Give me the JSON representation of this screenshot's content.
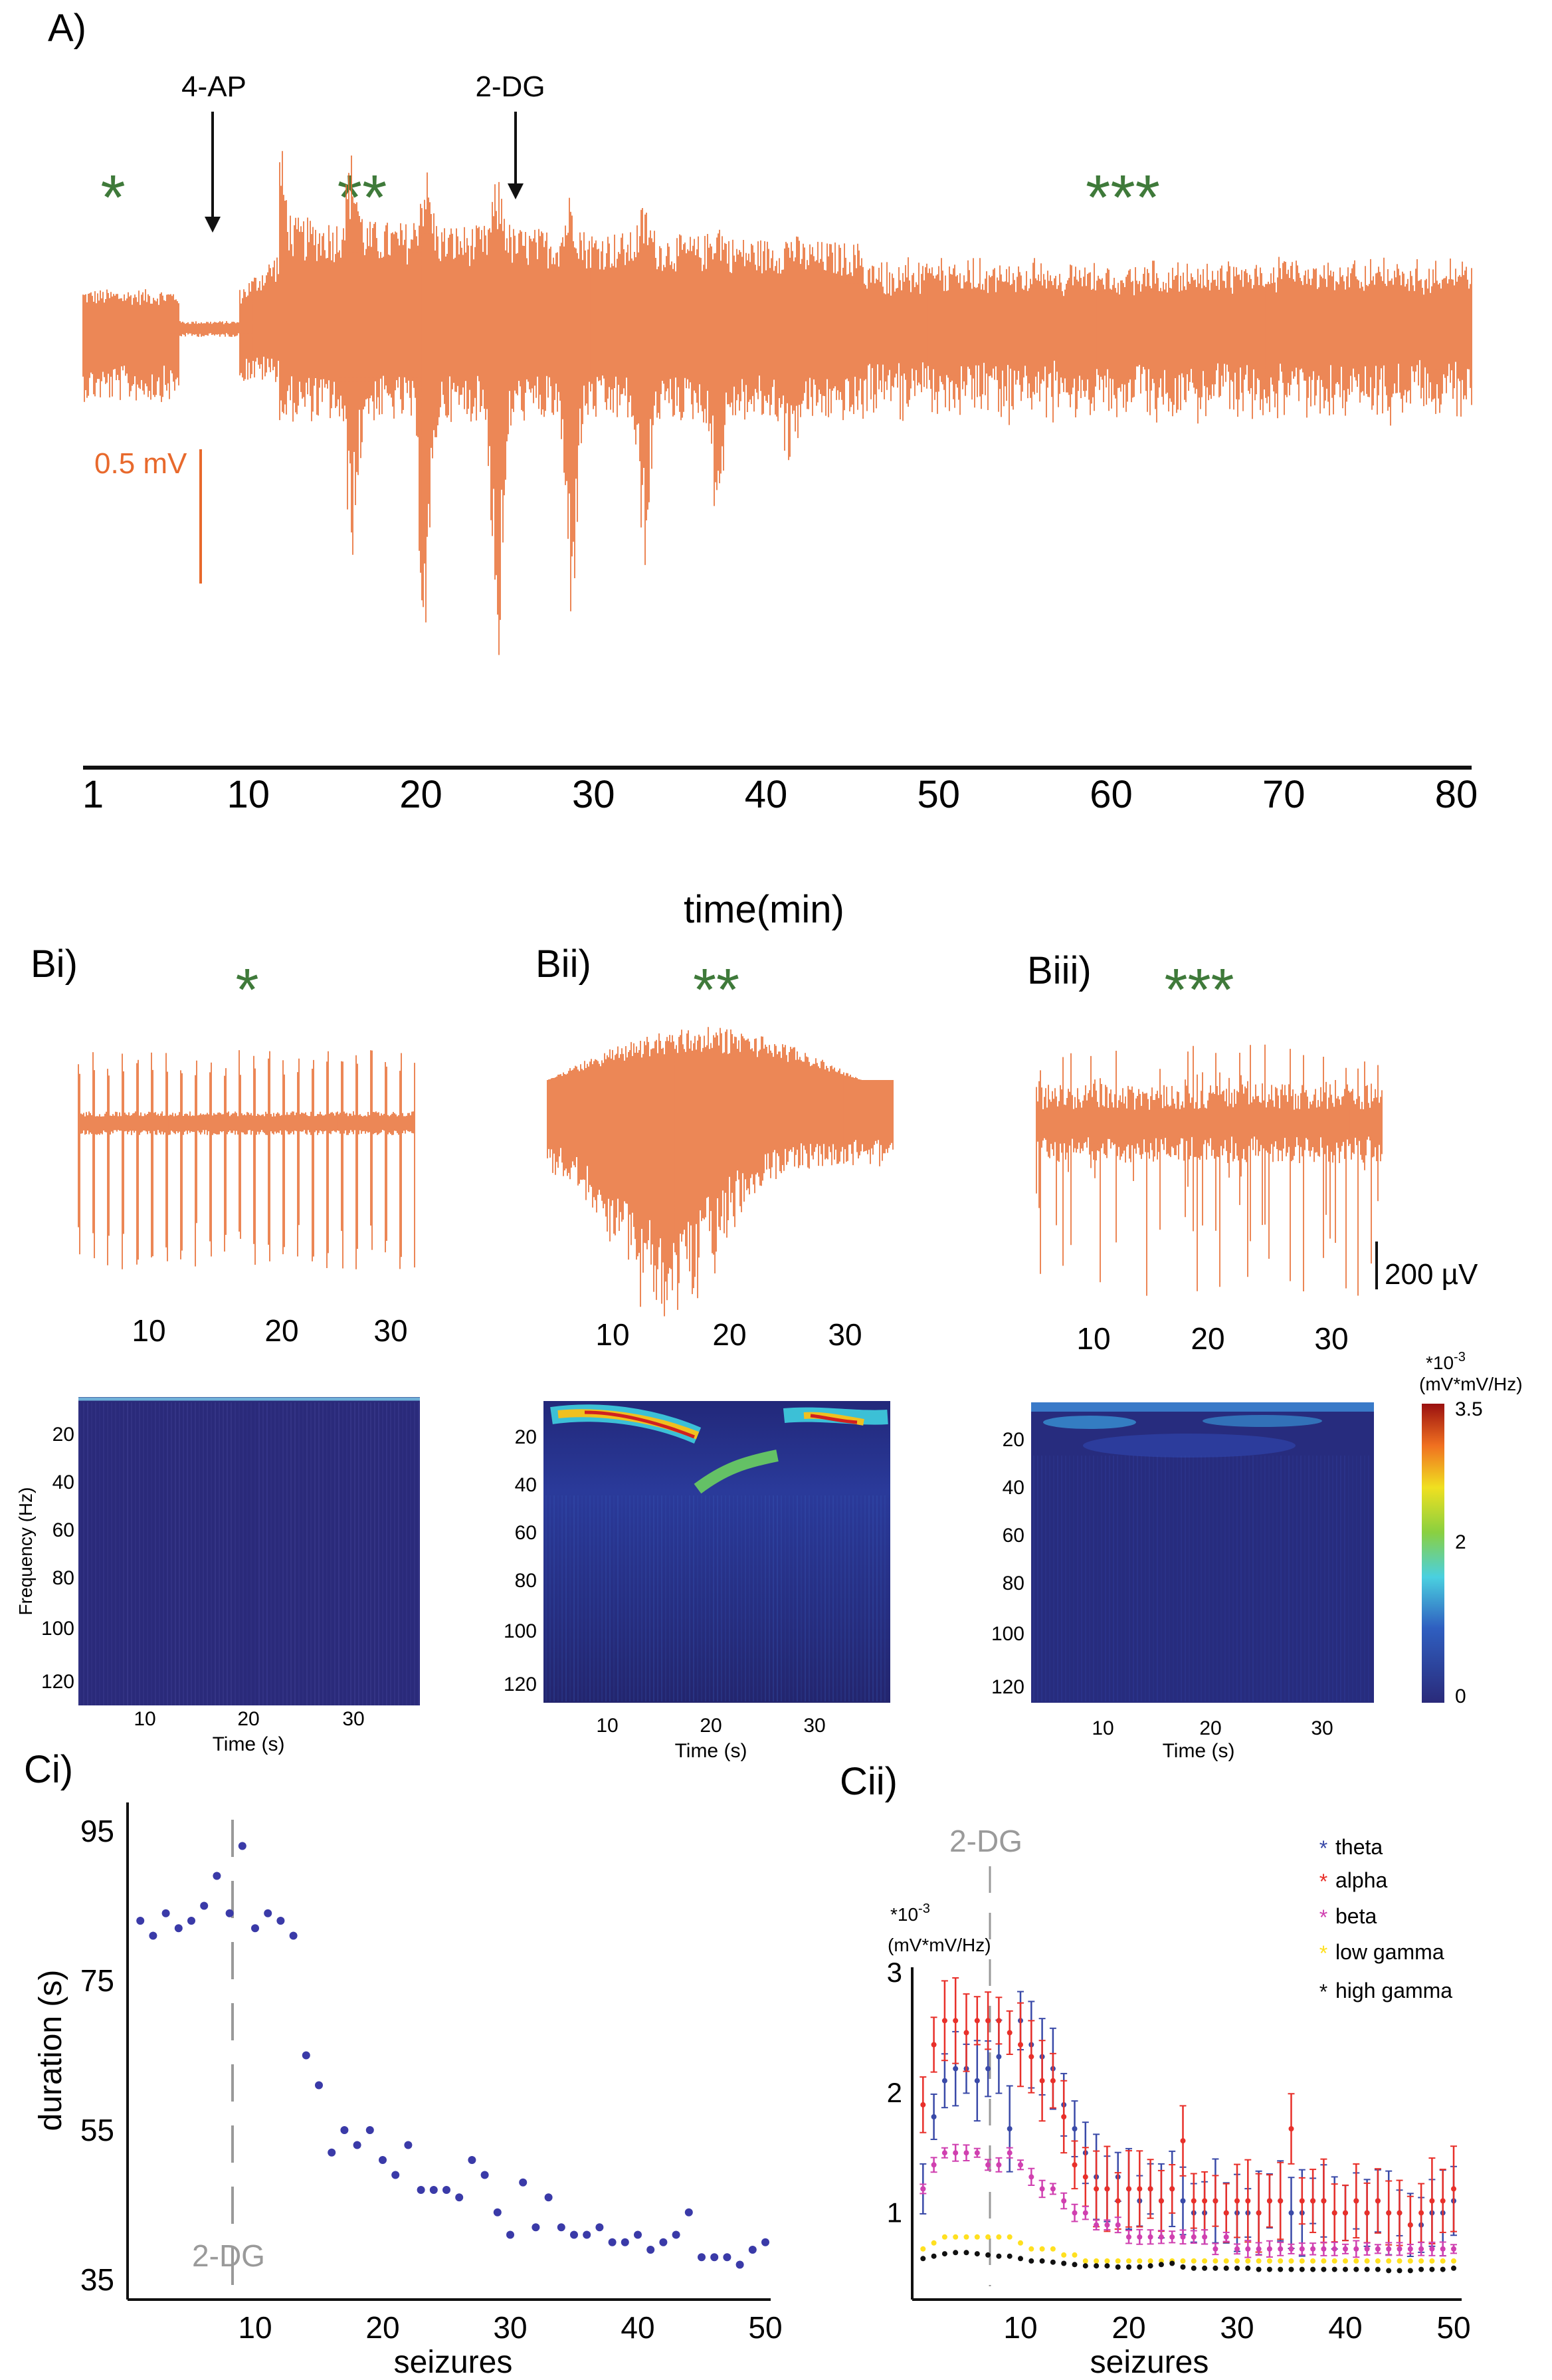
{
  "panels": {
    "A": {
      "label": "A)",
      "annotations": {
        "drug1": "4-AP",
        "drug2": "2-DG"
      },
      "stars": {
        "s1": "*",
        "s2": "**",
        "s3": "***"
      },
      "scale_label": "0.5 mV",
      "xlabel": "time(min)",
      "ticks": [
        "1",
        "10",
        "20",
        "30",
        "40",
        "50",
        "60",
        "70",
        "80"
      ]
    },
    "Bi": {
      "label": "Bi)",
      "star": "*",
      "trace_ticks": [
        "10",
        "20",
        "30"
      ]
    },
    "Bii": {
      "label": "Bii)",
      "star": "**",
      "trace_ticks": [
        "10",
        "20",
        "30"
      ]
    },
    "Biii": {
      "label": "Biii)",
      "star": "***",
      "trace_ticks": [
        "10",
        "20",
        "30"
      ],
      "scale_label": "200 µV"
    },
    "spectrogram": {
      "ylabel": "Frequency (Hz)",
      "xlabel": "Time (s)",
      "yticks": [
        "20",
        "40",
        "60",
        "80",
        "100",
        "120"
      ],
      "xticks": [
        "10",
        "20",
        "30"
      ]
    },
    "colorbar": {
      "unit_exp": "*10",
      "unit_sup": "-3",
      "unit": "(mV*mV/Hz)",
      "ticks": [
        "3.5",
        "2",
        "0"
      ]
    },
    "Ci": {
      "label": "Ci)",
      "ylabel": "duration (s)",
      "xlabel": "seizures",
      "marker": "2-DG",
      "yticks": [
        "95",
        "75",
        "55",
        "35"
      ],
      "xticks": [
        "10",
        "20",
        "30",
        "40",
        "50"
      ]
    },
    "Cii": {
      "label": "Cii)",
      "marker": "2-DG",
      "unit_exp": "*10",
      "unit_sup": "-3",
      "unit": "(mV*mV/Hz)",
      "xlabel": "seizures",
      "yticks": [
        "3",
        "2",
        "1"
      ],
      "xticks": [
        "10",
        "20",
        "30",
        "40",
        "50"
      ]
    }
  },
  "colors": {
    "trace": "#e8692c",
    "star": "#3f7a3a",
    "dots": "#3a3aa8",
    "theta": "#3a4aa8",
    "alpha": "#e8302a",
    "beta": "#d040b0",
    "low_gamma": "#ffe020",
    "high_gamma": "#111111"
  },
  "chart_data": [
    {
      "type": "scatter",
      "title": "Ci",
      "xlabel": "seizures",
      "ylabel": "duration (s)",
      "xlim": [
        0,
        50
      ],
      "ylim": [
        35,
        95
      ],
      "x": [
        1,
        2,
        3,
        4,
        5,
        6,
        7,
        8,
        9,
        10,
        11,
        12,
        13,
        14,
        15,
        16,
        17,
        18,
        19,
        20,
        21,
        22,
        23,
        24,
        25,
        26,
        27,
        28,
        29,
        30,
        31,
        32,
        33,
        34,
        35,
        36,
        37,
        38,
        39,
        40,
        41,
        42,
        43,
        44,
        45,
        46,
        47,
        48,
        49,
        50
      ],
      "y": [
        83,
        81,
        84,
        82,
        83,
        85,
        89,
        84,
        93,
        82,
        84,
        83,
        81,
        65,
        61,
        52,
        55,
        53,
        55,
        51,
        49,
        53,
        47,
        47,
        47,
        46,
        51,
        49,
        44,
        41,
        48,
        42,
        46,
        42,
        41,
        41,
        42,
        40,
        40,
        41,
        39,
        40,
        41,
        44,
        38,
        38,
        38,
        37,
        39,
        40
      ]
    },
    {
      "type": "line",
      "title": "Cii",
      "xlabel": "seizures",
      "ylabel": "*10^-3 (mV*mV/Hz)",
      "xlim": [
        0,
        50
      ],
      "ylim": [
        0.4,
        3
      ],
      "series": [
        {
          "name": "theta",
          "color": "#3a4aa8",
          "values": [
            1.2,
            1.8,
            2.1,
            2.2,
            2.2,
            2.1,
            2.2,
            2.3,
            1.7,
            2.6,
            2.4,
            2.3,
            2.2,
            1.9,
            1.7,
            1.5,
            1.3,
            1.2,
            1.3,
            1.2,
            1.1,
            1.2,
            1.1,
            1.2,
            1.1,
            1.0,
            1.0,
            1.1,
            1.0,
            1.0,
            1.0,
            1.0,
            1.1,
            1.1,
            1.0,
            1.0,
            1.1,
            1.1,
            1.0,
            1.0,
            1.1,
            1.0,
            1.1,
            1.0,
            1.0,
            0.9,
            0.9,
            1.0,
            1.0,
            1.1
          ]
        },
        {
          "name": "alpha",
          "color": "#e8302a",
          "values": [
            1.9,
            2.4,
            2.6,
            2.6,
            2.5,
            2.6,
            2.6,
            2.6,
            2.5,
            2.4,
            2.3,
            2.1,
            2.1,
            1.8,
            1.4,
            1.3,
            1.2,
            1.2,
            1.1,
            1.2,
            1.2,
            1.2,
            1.1,
            1.2,
            1.6,
            1.1,
            1.1,
            1.1,
            1.0,
            1.1,
            1.1,
            1.0,
            1.1,
            1.1,
            1.7,
            1.1,
            1.1,
            1.1,
            1.0,
            1.0,
            1.1,
            1.0,
            1.1,
            1.0,
            1.0,
            0.9,
            1.0,
            1.1,
            1.1,
            1.2
          ]
        },
        {
          "name": "beta",
          "color": "#d040b0",
          "values": [
            1.2,
            1.4,
            1.5,
            1.5,
            1.5,
            1.5,
            1.4,
            1.4,
            1.5,
            1.4,
            1.3,
            1.2,
            1.2,
            1.1,
            1.0,
            1.0,
            0.9,
            0.9,
            0.9,
            0.8,
            0.8,
            0.8,
            0.8,
            0.8,
            0.8,
            0.8,
            0.8,
            0.7,
            0.8,
            0.7,
            0.7,
            0.7,
            0.7,
            0.7,
            0.7,
            0.7,
            0.7,
            0.7,
            0.7,
            0.7,
            0.7,
            0.7,
            0.7,
            0.7,
            0.7,
            0.7,
            0.7,
            0.7,
            0.7,
            0.7
          ]
        },
        {
          "name": "low gamma",
          "color": "#ffe020",
          "values": [
            0.7,
            0.75,
            0.8,
            0.8,
            0.8,
            0.8,
            0.8,
            0.8,
            0.8,
            0.75,
            0.7,
            0.7,
            0.7,
            0.65,
            0.65,
            0.6,
            0.6,
            0.6,
            0.6,
            0.6,
            0.6,
            0.6,
            0.6,
            0.6,
            0.6,
            0.6,
            0.6,
            0.6,
            0.6,
            0.6,
            0.6,
            0.6,
            0.6,
            0.6,
            0.6,
            0.6,
            0.6,
            0.6,
            0.6,
            0.6,
            0.6,
            0.6,
            0.6,
            0.6,
            0.6,
            0.6,
            0.6,
            0.6,
            0.6,
            0.6
          ]
        },
        {
          "name": "high gamma",
          "color": "#111111",
          "values": [
            0.62,
            0.64,
            0.66,
            0.67,
            0.67,
            0.66,
            0.65,
            0.64,
            0.64,
            0.62,
            0.6,
            0.6,
            0.59,
            0.58,
            0.57,
            0.56,
            0.56,
            0.56,
            0.55,
            0.55,
            0.55,
            0.56,
            0.57,
            0.58,
            0.55,
            0.54,
            0.54,
            0.54,
            0.54,
            0.54,
            0.54,
            0.53,
            0.53,
            0.53,
            0.53,
            0.53,
            0.53,
            0.53,
            0.53,
            0.53,
            0.53,
            0.53,
            0.53,
            0.52,
            0.52,
            0.52,
            0.53,
            0.53,
            0.53,
            0.54
          ]
        }
      ]
    }
  ]
}
